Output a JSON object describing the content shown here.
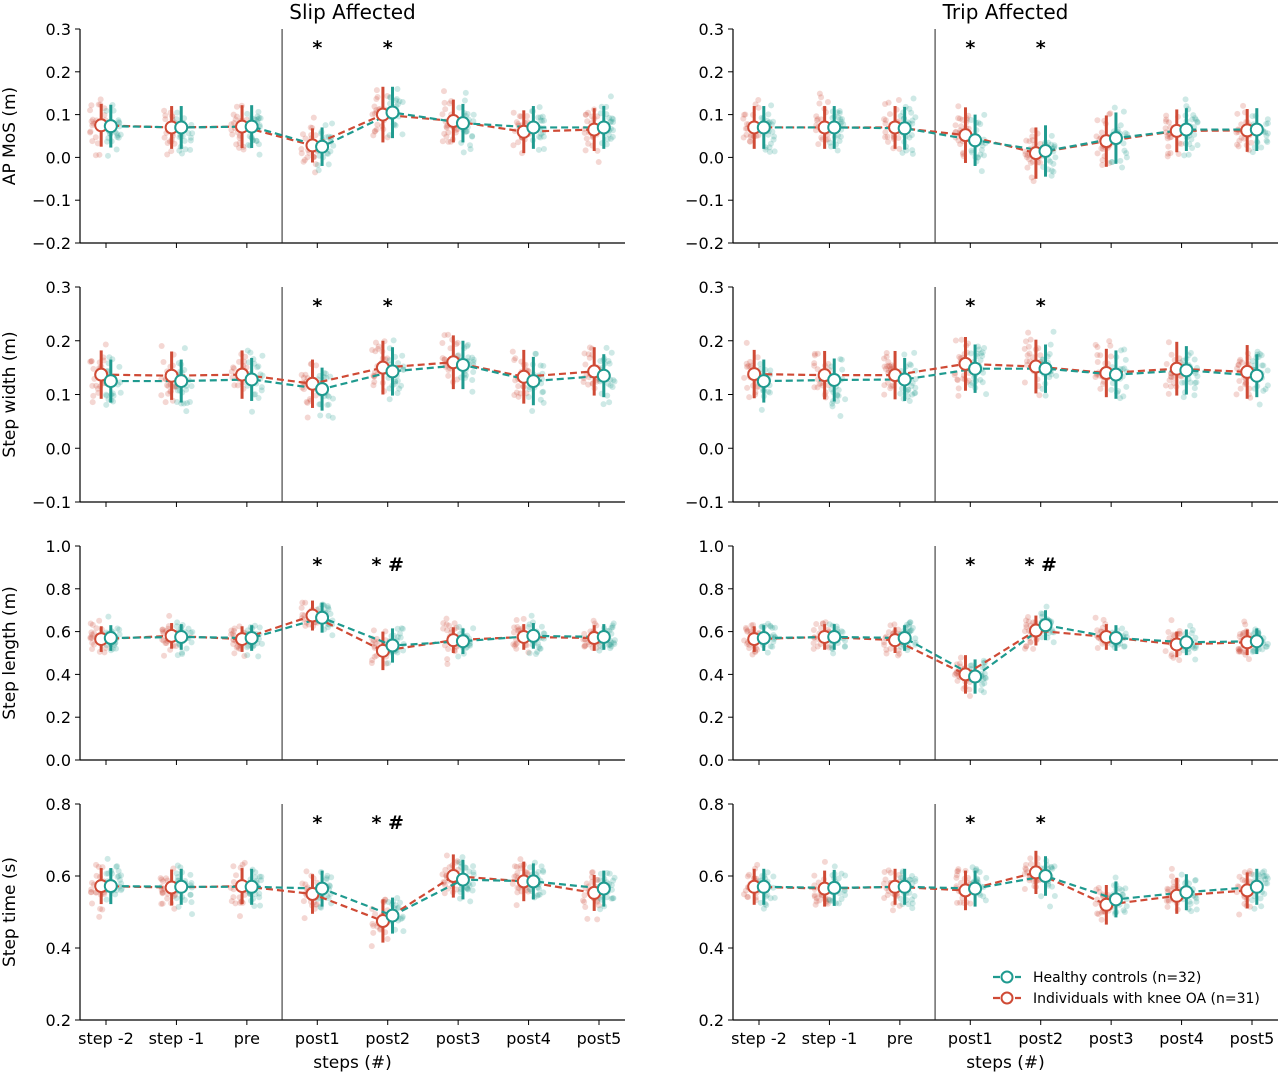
{
  "colors": {
    "controls": "#1f9a8f",
    "knee_oa": "#cf4a35",
    "axis": "#000000"
  },
  "columns": [
    {
      "title": "Slip Affected",
      "xlabel": "steps (#)"
    },
    {
      "title": "Trip Affected",
      "xlabel": "steps (#)"
    }
  ],
  "legend": {
    "placement": "lower-right of bottom-right panel",
    "entries": [
      "Healthy controls (n=32)",
      "Individuals with knee OA (n=31)"
    ]
  },
  "chart_data": {
    "type": "line",
    "categories": [
      "step -2",
      "step -1",
      "pre",
      "post1",
      "post2",
      "post3",
      "post4",
      "post5"
    ],
    "divider_between": [
      "pre",
      "post1"
    ],
    "series_names": [
      "Healthy controls (n=32)",
      "Individuals with knee OA (n=31)"
    ],
    "panels": [
      {
        "id": "slip-apmos",
        "column": 0,
        "ylabel": "AP MoS (m)",
        "ylim": [
          -0.2,
          0.3
        ],
        "yticks": [
          "−0.2",
          "−0.1",
          "0.0",
          "0.1",
          "0.2",
          "0.3"
        ],
        "significance": [
          {
            "category": "post1",
            "text": "*"
          },
          {
            "category": "post2",
            "text": "*"
          }
        ],
        "controls": {
          "mean": [
            0.073,
            0.07,
            0.072,
            0.025,
            0.105,
            0.08,
            0.07,
            0.07
          ],
          "sd": [
            0.05,
            0.05,
            0.05,
            0.045,
            0.06,
            0.045,
            0.05,
            0.05
          ],
          "spread": 0.07
        },
        "knee_oa": {
          "mean": [
            0.075,
            0.07,
            0.072,
            0.028,
            0.1,
            0.085,
            0.06,
            0.065
          ],
          "sd": [
            0.05,
            0.05,
            0.05,
            0.04,
            0.065,
            0.05,
            0.05,
            0.05
          ],
          "spread": 0.07
        }
      },
      {
        "id": "trip-apmos",
        "column": 1,
        "ylabel": "",
        "ylim": [
          -0.2,
          0.3
        ],
        "yticks": [
          "−0.2",
          "−0.1",
          "0.0",
          "0.1",
          "0.2",
          "0.3"
        ],
        "significance": [
          {
            "category": "post1",
            "text": "*"
          },
          {
            "category": "post2",
            "text": "*"
          }
        ],
        "controls": {
          "mean": [
            0.07,
            0.07,
            0.068,
            0.04,
            0.015,
            0.045,
            0.065,
            0.065
          ],
          "sd": [
            0.05,
            0.05,
            0.05,
            0.06,
            0.06,
            0.06,
            0.05,
            0.05
          ],
          "spread": 0.07
        },
        "knee_oa": {
          "mean": [
            0.07,
            0.07,
            0.07,
            0.052,
            0.01,
            0.038,
            0.062,
            0.063
          ],
          "sd": [
            0.05,
            0.05,
            0.05,
            0.065,
            0.06,
            0.06,
            0.05,
            0.05
          ],
          "spread": 0.07
        }
      },
      {
        "id": "slip-width",
        "column": 0,
        "ylabel": "Step width (m)",
        "ylim": [
          -0.1,
          0.3
        ],
        "yticks": [
          "−0.1",
          "0.0",
          "0.1",
          "0.2",
          "0.3"
        ],
        "significance": [
          {
            "category": "post1",
            "text": "*"
          },
          {
            "category": "post2",
            "text": "*"
          }
        ],
        "controls": {
          "mean": [
            0.125,
            0.125,
            0.128,
            0.11,
            0.143,
            0.155,
            0.125,
            0.135
          ],
          "sd": [
            0.04,
            0.04,
            0.04,
            0.04,
            0.045,
            0.045,
            0.045,
            0.04
          ],
          "spread": 0.06
        },
        "knee_oa": {
          "mean": [
            0.137,
            0.135,
            0.137,
            0.12,
            0.15,
            0.16,
            0.133,
            0.143
          ],
          "sd": [
            0.045,
            0.045,
            0.045,
            0.045,
            0.05,
            0.05,
            0.05,
            0.045
          ],
          "spread": 0.06
        }
      },
      {
        "id": "trip-width",
        "column": 1,
        "ylabel": "",
        "ylim": [
          -0.1,
          0.3
        ],
        "yticks": [
          "−0.1",
          "0.0",
          "0.1",
          "0.2",
          "0.3"
        ],
        "significance": [
          {
            "category": "post1",
            "text": "*"
          },
          {
            "category": "post2",
            "text": "*"
          }
        ],
        "controls": {
          "mean": [
            0.125,
            0.127,
            0.128,
            0.148,
            0.148,
            0.137,
            0.145,
            0.135
          ],
          "sd": [
            0.04,
            0.04,
            0.04,
            0.045,
            0.045,
            0.045,
            0.045,
            0.04
          ],
          "spread": 0.06
        },
        "knee_oa": {
          "mean": [
            0.138,
            0.136,
            0.136,
            0.157,
            0.152,
            0.14,
            0.148,
            0.142
          ],
          "sd": [
            0.045,
            0.045,
            0.045,
            0.05,
            0.05,
            0.045,
            0.05,
            0.05
          ],
          "spread": 0.06
        }
      },
      {
        "id": "slip-length",
        "column": 0,
        "ylabel": "Step length (m)",
        "ylim": [
          0.0,
          1.0
        ],
        "yticks": [
          "0.0",
          "0.2",
          "0.4",
          "0.6",
          "0.8",
          "1.0"
        ],
        "significance": [
          {
            "category": "post1",
            "text": "*"
          },
          {
            "category": "post2",
            "text": "* #"
          }
        ],
        "controls": {
          "mean": [
            0.57,
            0.575,
            0.57,
            0.665,
            0.535,
            0.555,
            0.58,
            0.575
          ],
          "sd": [
            0.06,
            0.06,
            0.06,
            0.07,
            0.08,
            0.06,
            0.06,
            0.06
          ],
          "spread": 0.09
        },
        "knee_oa": {
          "mean": [
            0.565,
            0.58,
            0.565,
            0.675,
            0.51,
            0.56,
            0.575,
            0.57
          ],
          "sd": [
            0.06,
            0.06,
            0.06,
            0.07,
            0.09,
            0.06,
            0.06,
            0.06
          ],
          "spread": 0.09
        }
      },
      {
        "id": "trip-length",
        "column": 1,
        "ylabel": "",
        "ylim": [
          0.0,
          1.0
        ],
        "yticks": [
          "0.0",
          "0.2",
          "0.4",
          "0.6",
          "0.8",
          "1.0"
        ],
        "significance": [
          {
            "category": "post1",
            "text": "*"
          },
          {
            "category": "post2",
            "text": "* #"
          }
        ],
        "controls": {
          "mean": [
            0.57,
            0.575,
            0.57,
            0.39,
            0.63,
            0.57,
            0.55,
            0.555
          ],
          "sd": [
            0.06,
            0.06,
            0.06,
            0.08,
            0.07,
            0.06,
            0.06,
            0.06
          ],
          "spread": 0.09
        },
        "knee_oa": {
          "mean": [
            0.565,
            0.575,
            0.56,
            0.4,
            0.605,
            0.575,
            0.54,
            0.55
          ],
          "sd": [
            0.06,
            0.06,
            0.06,
            0.09,
            0.07,
            0.06,
            0.06,
            0.06
          ],
          "spread": 0.09
        }
      },
      {
        "id": "slip-time",
        "column": 0,
        "ylabel": "Step time (s)",
        "ylim": [
          0.2,
          0.8
        ],
        "yticks": [
          "0.2",
          "0.4",
          "0.6",
          "0.8"
        ],
        "significance": [
          {
            "category": "post1",
            "text": "*"
          },
          {
            "category": "post2",
            "text": "* #"
          }
        ],
        "controls": {
          "mean": [
            0.572,
            0.57,
            0.57,
            0.565,
            0.49,
            0.59,
            0.585,
            0.565
          ],
          "sd": [
            0.05,
            0.05,
            0.05,
            0.05,
            0.05,
            0.055,
            0.05,
            0.05
          ],
          "spread": 0.07
        },
        "knee_oa": {
          "mean": [
            0.572,
            0.568,
            0.572,
            0.55,
            0.475,
            0.6,
            0.585,
            0.553
          ],
          "sd": [
            0.05,
            0.05,
            0.05,
            0.055,
            0.06,
            0.06,
            0.055,
            0.05
          ],
          "spread": 0.07
        }
      },
      {
        "id": "trip-time",
        "column": 1,
        "ylabel": "",
        "ylim": [
          0.2,
          0.8
        ],
        "yticks": [
          "0.2",
          "0.4",
          "0.6",
          "0.8"
        ],
        "significance": [
          {
            "category": "post1",
            "text": "*"
          },
          {
            "category": "post2",
            "text": "*"
          }
        ],
        "controls": {
          "mean": [
            0.57,
            0.567,
            0.57,
            0.565,
            0.6,
            0.535,
            0.555,
            0.57
          ],
          "sd": [
            0.05,
            0.05,
            0.05,
            0.05,
            0.055,
            0.05,
            0.05,
            0.05
          ],
          "spread": 0.07
        },
        "knee_oa": {
          "mean": [
            0.57,
            0.565,
            0.57,
            0.56,
            0.61,
            0.52,
            0.545,
            0.56
          ],
          "sd": [
            0.05,
            0.05,
            0.05,
            0.055,
            0.06,
            0.055,
            0.05,
            0.05
          ],
          "spread": 0.07
        }
      }
    ]
  }
}
